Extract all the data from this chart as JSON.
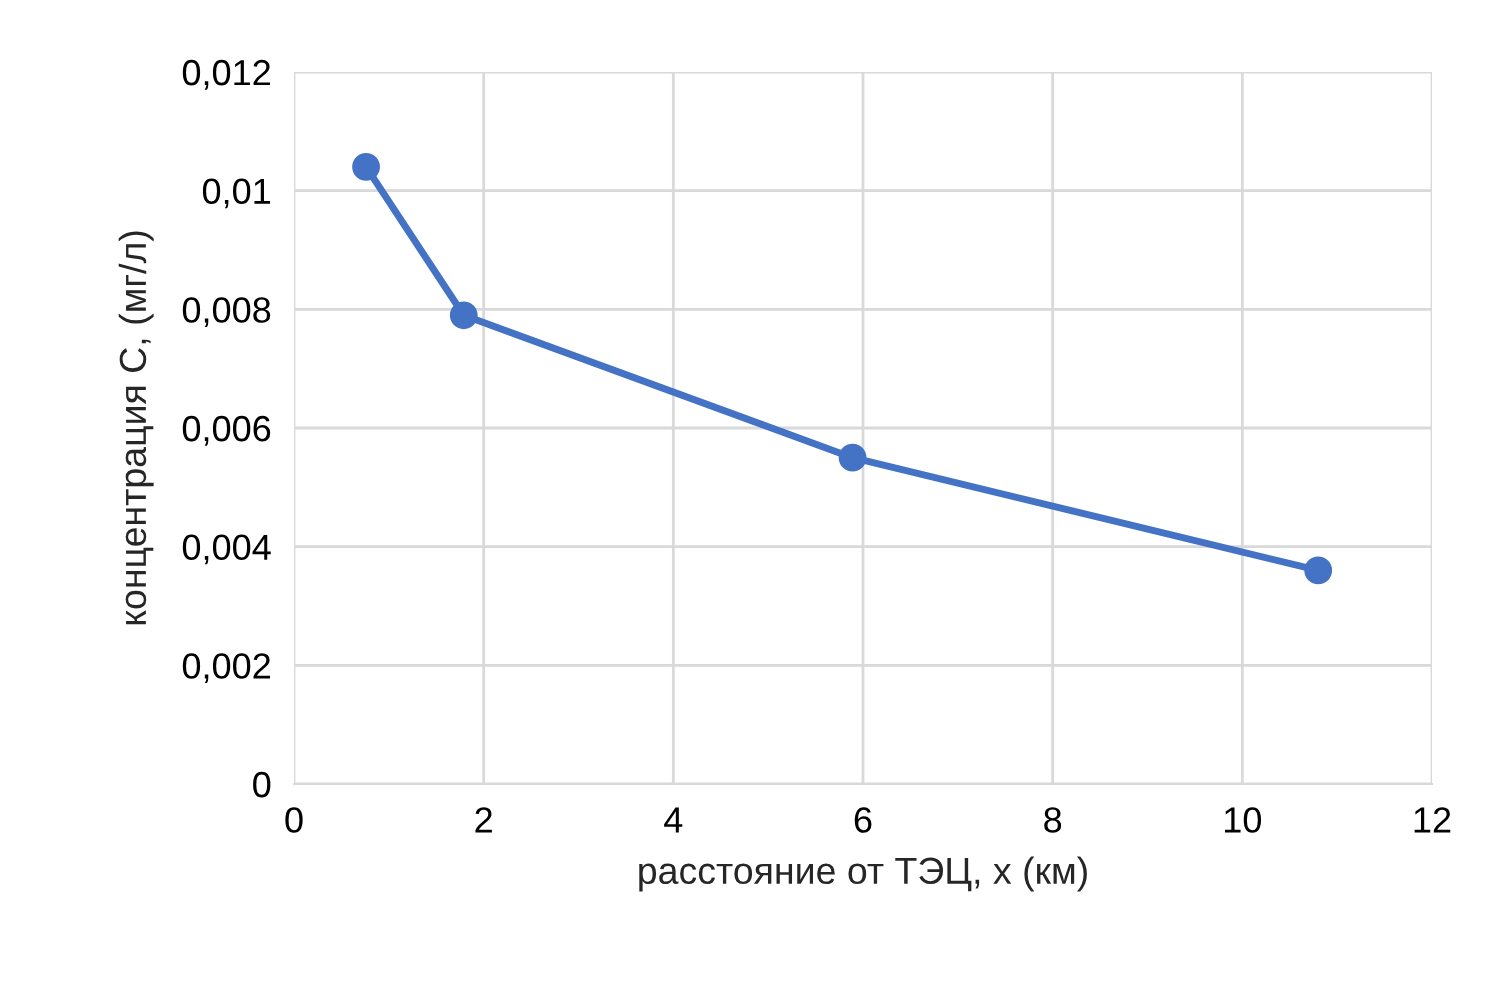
{
  "chart_data": {
    "type": "line",
    "xlabel": "расстояние от ТЭЦ, x (км)",
    "ylabel": "концентрация C, (мг/л)",
    "x": [
      0.76,
      1.79,
      5.89,
      10.8
    ],
    "series": [
      {
        "color": "#4472c4",
        "values": [
          0.0104,
          0.0079,
          0.0055,
          0.0036
        ]
      }
    ],
    "xlim": [
      0,
      12
    ],
    "xticks": [
      0,
      2,
      4,
      6,
      8,
      10,
      12
    ],
    "ylim": [
      0,
      0.012
    ],
    "yticks": [
      {
        "value": 0,
        "label": "0"
      },
      {
        "value": 0.002,
        "label": "0,002"
      },
      {
        "value": 0.004,
        "label": "0,004"
      },
      {
        "value": 0.006,
        "label": "0,006"
      },
      {
        "value": 0.008,
        "label": "0,008"
      },
      {
        "value": 0.01,
        "label": "0,01"
      },
      {
        "value": 0.012,
        "label": "0,012"
      }
    ],
    "grid": true,
    "marker": "circle",
    "line_style": "solid"
  }
}
